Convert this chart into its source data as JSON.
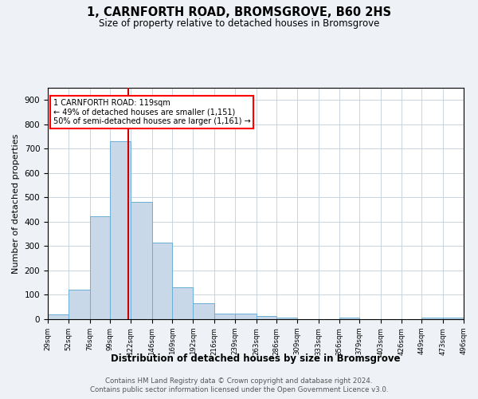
{
  "title1": "1, CARNFORTH ROAD, BROMSGROVE, B60 2HS",
  "title2": "Size of property relative to detached houses in Bromsgrove",
  "xlabel": "Distribution of detached houses by size in Bromsgrove",
  "ylabel": "Number of detached properties",
  "footer1": "Contains HM Land Registry data © Crown copyright and database right 2024.",
  "footer2": "Contains public sector information licensed under the Open Government Licence v3.0.",
  "annotation_line1": "1 CARNFORTH ROAD: 119sqm",
  "annotation_line2": "← 49% of detached houses are smaller (1,151)",
  "annotation_line3": "50% of semi-detached houses are larger (1,161) →",
  "bar_color": "#c8d8e8",
  "bar_edge_color": "#6baed6",
  "vline_color": "#cc0000",
  "vline_x": 119,
  "bins": [
    29,
    52,
    76,
    99,
    122,
    146,
    169,
    192,
    216,
    239,
    263,
    286,
    309,
    333,
    356,
    379,
    403,
    426,
    449,
    473,
    496
  ],
  "heights": [
    20,
    122,
    422,
    730,
    480,
    315,
    130,
    65,
    22,
    22,
    12,
    8,
    0,
    0,
    6,
    0,
    0,
    0,
    8,
    8,
    0
  ],
  "ylim": [
    0,
    950
  ],
  "yticks": [
    0,
    100,
    200,
    300,
    400,
    500,
    600,
    700,
    800,
    900
  ],
  "background_color": "#eef2f7",
  "plot_bg_color": "#ffffff",
  "grid_color": "#c8d4e0"
}
